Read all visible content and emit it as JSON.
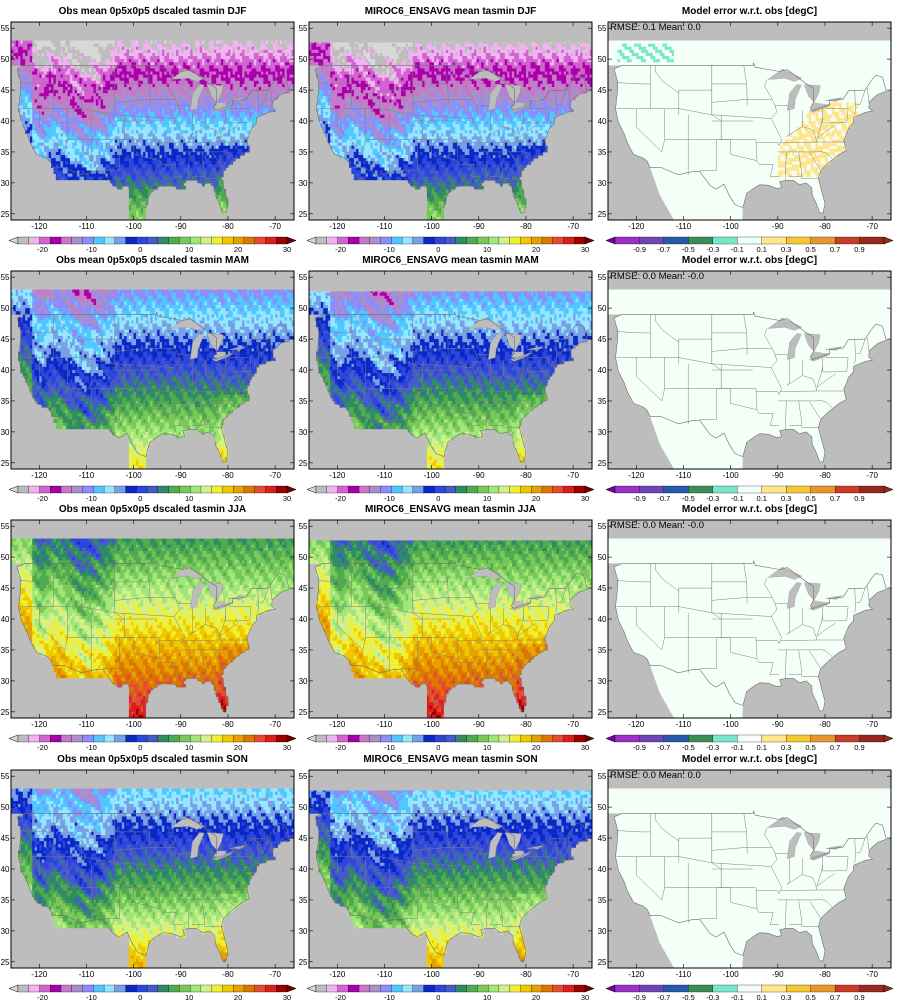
{
  "figure": {
    "panels": [
      {
        "id": "obs-djf",
        "row": 0,
        "col": 0,
        "kind": "field",
        "season": "DJF",
        "title": "Obs mean 0p5x0p5 dscaled tasmin DJF",
        "stats": ""
      },
      {
        "id": "model-djf",
        "row": 0,
        "col": 1,
        "kind": "field",
        "season": "DJF",
        "title": "MIROC6_ENSAVG mean tasmin DJF",
        "stats": ""
      },
      {
        "id": "err-djf",
        "row": 0,
        "col": 2,
        "kind": "error",
        "season": "DJF",
        "title": "Model error w.r.t. obs [degC]",
        "stats": "RMSE: 0.1   Mean: 0.0"
      },
      {
        "id": "obs-mam",
        "row": 1,
        "col": 0,
        "kind": "field",
        "season": "MAM",
        "title": "Obs mean 0p5x0p5 dscaled tasmin MAM",
        "stats": ""
      },
      {
        "id": "model-mam",
        "row": 1,
        "col": 1,
        "kind": "field",
        "season": "MAM",
        "title": "MIROC6_ENSAVG mean tasmin MAM",
        "stats": ""
      },
      {
        "id": "err-mam",
        "row": 1,
        "col": 2,
        "kind": "error",
        "season": "MAM",
        "title": "Model error w.r.t. obs [degC]",
        "stats": "RMSE: 0.0   Mean: -0.0"
      },
      {
        "id": "obs-jja",
        "row": 2,
        "col": 0,
        "kind": "field",
        "season": "JJA",
        "title": "Obs mean 0p5x0p5 dscaled tasmin JJA",
        "stats": ""
      },
      {
        "id": "model-jja",
        "row": 2,
        "col": 1,
        "kind": "field",
        "season": "JJA",
        "title": "MIROC6_ENSAVG mean tasmin JJA",
        "stats": ""
      },
      {
        "id": "err-jja",
        "row": 2,
        "col": 2,
        "kind": "error",
        "season": "JJA",
        "title": "Model error w.r.t. obs [degC]",
        "stats": "RMSE: 0.0   Mean: -0.0"
      },
      {
        "id": "obs-son",
        "row": 3,
        "col": 0,
        "kind": "field",
        "season": "SON",
        "title": "Obs mean 0p5x0p5 dscaled tasmin SON",
        "stats": ""
      },
      {
        "id": "model-son",
        "row": 3,
        "col": 1,
        "kind": "field",
        "season": "SON",
        "title": "MIROC6_ENSAVG mean tasmin SON",
        "stats": ""
      },
      {
        "id": "err-son",
        "row": 3,
        "col": 2,
        "kind": "error",
        "season": "SON",
        "title": "Model error w.r.t. obs [degC]",
        "stats": "RMSE: 0.0   Mean: 0.0"
      }
    ],
    "lon_ticks": [
      "-120",
      "-110",
      "-100",
      "-90",
      "-80",
      "-70"
    ],
    "lat_ticks": [
      "55",
      "50",
      "45",
      "40",
      "35",
      "30",
      "25"
    ],
    "lon_values": [
      -120,
      -110,
      -100,
      -90,
      -80,
      -70
    ],
    "lat_values": [
      55,
      50,
      45,
      40,
      35,
      30,
      25
    ],
    "lon_range": [
      -126,
      -66
    ],
    "lat_range": [
      24,
      56
    ],
    "field_colorbar": {
      "labels": [
        "-20",
        "-10",
        "0",
        "10",
        "20",
        "30"
      ],
      "label_values": [
        -20,
        -10,
        0,
        10,
        20,
        30
      ],
      "range": [
        -25,
        30
      ],
      "colors": [
        "#bdbdbd",
        "#f0b4f0",
        "#d264d2",
        "#aa00aa",
        "#c878c8",
        "#a890c8",
        "#8c8cff",
        "#50c8ff",
        "#96e6ff",
        "#78a0e6",
        "#0a28c8",
        "#2d46dc",
        "#465ac8",
        "#2d8c64",
        "#50aa50",
        "#78c85a",
        "#a0e678",
        "#d2f08c",
        "#f0f032",
        "#f0c800",
        "#e6a000",
        "#dc7800",
        "#e64b32",
        "#dc1e1e",
        "#a00000"
      ],
      "under_color": "#d8d8d8",
      "over_color": "#6e0000"
    },
    "error_colorbar": {
      "labels": [
        "-0.9",
        "-0.7",
        "-0.5",
        "-0.3",
        "-0.1",
        "0.1",
        "0.3",
        "0.5",
        "0.7",
        "0.9"
      ],
      "label_values": [
        -0.9,
        -0.7,
        -0.5,
        -0.3,
        -0.1,
        0.1,
        0.3,
        0.5,
        0.7,
        0.9
      ],
      "colors": [
        "#9b30c8",
        "#6e46b4",
        "#285aaa",
        "#3c8c5a",
        "#78e6c8",
        "#f2fff8",
        "#ffe68c",
        "#f5c832",
        "#e6962d",
        "#c83c28",
        "#96281e"
      ],
      "under_color": "#7800a0",
      "over_color": "#8c3214"
    },
    "land_background": "#f4fff8",
    "missing_color": "#bdbdbd",
    "error_hotspot_colors": {
      "positive": "#ffe68c",
      "negative": "#78e6c8"
    }
  }
}
